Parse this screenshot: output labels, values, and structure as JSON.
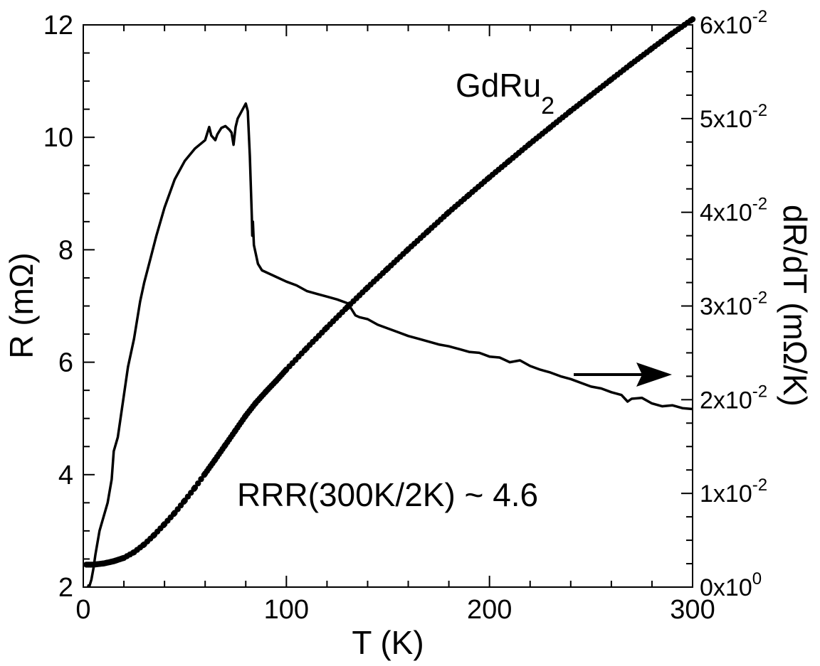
{
  "chart_data": {
    "type": "line",
    "title": "",
    "annotations": {
      "compound": "GdRu",
      "compound_subscript": "2",
      "rrr": "RRR(300K/2K) ~ 4.6"
    },
    "xlabel": "T (K)",
    "ylabel": "R  (mΩ)",
    "y2label": "dR/dT (mΩ/K)",
    "xlim": [
      0,
      300
    ],
    "ylim": [
      2,
      12
    ],
    "y2lim": [
      0,
      0.06
    ],
    "x_ticks": [
      0,
      100,
      200,
      300
    ],
    "x_tick_labels": [
      "0",
      "100",
      "200",
      "300"
    ],
    "y_ticks": [
      2,
      4,
      6,
      8,
      10,
      12
    ],
    "y_tick_labels": [
      "2",
      "4",
      "6",
      "8",
      "10",
      "12"
    ],
    "y2_ticks": [
      0,
      0.01,
      0.02,
      0.03,
      0.04,
      0.05,
      0.06
    ],
    "y2_tick_labels": [
      {
        "mantissa": "0x10",
        "exp": "0"
      },
      {
        "mantissa": "1x10",
        "exp": "-2"
      },
      {
        "mantissa": "2x10",
        "exp": "-2"
      },
      {
        "mantissa": "3x10",
        "exp": "-2"
      },
      {
        "mantissa": "4x10",
        "exp": "-2"
      },
      {
        "mantissa": "5x10",
        "exp": "-2"
      },
      {
        "mantissa": "6x10",
        "exp": "-2"
      }
    ],
    "grid": false,
    "series": [
      {
        "style": "markers",
        "axis": "left",
        "color": "#000000",
        "x": [
          1.5,
          5,
          10,
          15,
          20,
          25,
          30,
          35,
          40,
          45,
          50,
          55,
          60,
          65,
          70,
          75,
          80,
          85,
          90,
          95,
          100,
          110,
          120,
          130,
          140,
          150,
          160,
          170,
          180,
          190,
          200,
          210,
          220,
          230,
          240,
          250,
          260,
          270,
          280,
          290,
          300
        ],
        "y": [
          2.4,
          2.4,
          2.42,
          2.46,
          2.52,
          2.62,
          2.76,
          2.93,
          3.12,
          3.32,
          3.54,
          3.77,
          4.02,
          4.27,
          4.53,
          4.79,
          5.05,
          5.28,
          5.48,
          5.67,
          5.87,
          6.25,
          6.62,
          6.98,
          7.33,
          7.67,
          8.01,
          8.34,
          8.67,
          8.98,
          9.29,
          9.59,
          9.89,
          10.18,
          10.47,
          10.75,
          11.03,
          11.31,
          11.58,
          11.85,
          12.1
        ]
      },
      {
        "style": "line",
        "axis": "right",
        "color": "#000000",
        "x": [
          2,
          3,
          4,
          5,
          6,
          8,
          10,
          12,
          14,
          15,
          17,
          20,
          22,
          25,
          28,
          30,
          33,
          36,
          40,
          45,
          50,
          55,
          60,
          62,
          63,
          65,
          66,
          68,
          70,
          72,
          73,
          74,
          75,
          76,
          78,
          80,
          81,
          82,
          83,
          83.2,
          83.5,
          84,
          86,
          88,
          90,
          95,
          100,
          105,
          110,
          115,
          120,
          125,
          130,
          132,
          134,
          136,
          140,
          145,
          150,
          155,
          160,
          165,
          170,
          175,
          180,
          185,
          190,
          195,
          200,
          205,
          210,
          215,
          220,
          225,
          230,
          235,
          240,
          245,
          250,
          255,
          260,
          265,
          268,
          270,
          275,
          280,
          285,
          290,
          295,
          300
        ],
        "y": [
          0.0002,
          0.0001,
          0.0008,
          0.002,
          0.0035,
          0.006,
          0.0075,
          0.009,
          0.0115,
          0.0145,
          0.016,
          0.0205,
          0.0235,
          0.0265,
          0.0305,
          0.0325,
          0.035,
          0.0375,
          0.0405,
          0.0435,
          0.0455,
          0.0468,
          0.0477,
          0.0491,
          0.0482,
          0.0477,
          0.0483,
          0.049,
          0.0492,
          0.0488,
          0.0485,
          0.0472,
          0.0491,
          0.05,
          0.0508,
          0.0516,
          0.0508,
          0.046,
          0.0395,
          0.0375,
          0.039,
          0.0365,
          0.0345,
          0.0338,
          0.0336,
          0.0331,
          0.0326,
          0.0322,
          0.0316,
          0.0313,
          0.031,
          0.0307,
          0.0303,
          0.0297,
          0.029,
          0.0288,
          0.0286,
          0.028,
          0.0276,
          0.0272,
          0.0268,
          0.0265,
          0.0262,
          0.0259,
          0.0257,
          0.0254,
          0.0251,
          0.025,
          0.0246,
          0.0245,
          0.024,
          0.0242,
          0.0236,
          0.0232,
          0.0229,
          0.0225,
          0.0222,
          0.0218,
          0.0214,
          0.0212,
          0.0208,
          0.0205,
          0.0198,
          0.0201,
          0.0202,
          0.0196,
          0.0193,
          0.0194,
          0.0191,
          0.019
        ]
      }
    ]
  }
}
